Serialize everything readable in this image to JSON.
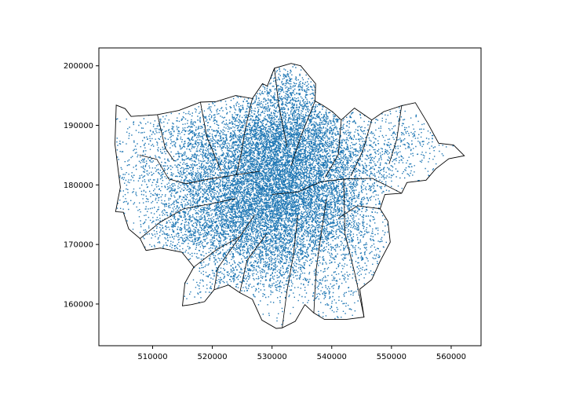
{
  "chart_data": {
    "type": "scatter",
    "title": "",
    "xlabel": "",
    "ylabel": "",
    "xlim": [
      501000,
      565000
    ],
    "ylim": [
      153000,
      203000
    ],
    "grid": false,
    "legend": "none",
    "point_color": "#1f77b4",
    "boundary_color": "#000000",
    "x_ticks": [
      {
        "value": 510000,
        "label": "510000"
      },
      {
        "value": 520000,
        "label": "520000"
      },
      {
        "value": 530000,
        "label": "530000"
      },
      {
        "value": 540000,
        "label": "540000"
      },
      {
        "value": 550000,
        "label": "550000"
      },
      {
        "value": 560000,
        "label": "560000"
      }
    ],
    "y_ticks": [
      {
        "value": 160000,
        "label": "160000"
      },
      {
        "value": 170000,
        "label": "170000"
      },
      {
        "value": 180000,
        "label": "180000"
      },
      {
        "value": 190000,
        "label": "190000"
      },
      {
        "value": 200000,
        "label": "200000"
      }
    ],
    "outline": [
      [
        503800,
        175500
      ],
      [
        504600,
        179600
      ],
      [
        503700,
        186800
      ],
      [
        503900,
        193400
      ],
      [
        505400,
        192800
      ],
      [
        506400,
        191500
      ],
      [
        510800,
        191800
      ],
      [
        514400,
        192500
      ],
      [
        518000,
        193900
      ],
      [
        520700,
        194000
      ],
      [
        523900,
        195000
      ],
      [
        526700,
        194500
      ],
      [
        528400,
        197000
      ],
      [
        529200,
        196600
      ],
      [
        530400,
        199600
      ],
      [
        533200,
        200400
      ],
      [
        534800,
        200000
      ],
      [
        536200,
        198300
      ],
      [
        537300,
        197000
      ],
      [
        537200,
        194100
      ],
      [
        538600,
        193300
      ],
      [
        540100,
        192300
      ],
      [
        541600,
        190900
      ],
      [
        543800,
        192900
      ],
      [
        546700,
        190900
      ],
      [
        548700,
        192300
      ],
      [
        551700,
        193300
      ],
      [
        554000,
        193800
      ],
      [
        556100,
        190300
      ],
      [
        557900,
        187000
      ],
      [
        560400,
        186700
      ],
      [
        562200,
        184900
      ],
      [
        559600,
        184400
      ],
      [
        557400,
        182700
      ],
      [
        555800,
        180800
      ],
      [
        552600,
        180400
      ],
      [
        551700,
        178600
      ],
      [
        548900,
        178400
      ],
      [
        548100,
        176000
      ],
      [
        549400,
        173900
      ],
      [
        549800,
        170400
      ],
      [
        548100,
        167200
      ],
      [
        546700,
        164100
      ],
      [
        544700,
        162500
      ],
      [
        545400,
        157800
      ],
      [
        542400,
        157400
      ],
      [
        538800,
        157400
      ],
      [
        537000,
        158500
      ],
      [
        535500,
        159900
      ],
      [
        533900,
        157100
      ],
      [
        531700,
        156000
      ],
      [
        530700,
        155900
      ],
      [
        528300,
        157300
      ],
      [
        526700,
        160800
      ],
      [
        524600,
        161900
      ],
      [
        522700,
        163200
      ],
      [
        520300,
        162400
      ],
      [
        518700,
        160400
      ],
      [
        516500,
        159900
      ],
      [
        515000,
        159700
      ],
      [
        515400,
        163500
      ],
      [
        516900,
        166200
      ],
      [
        514900,
        168700
      ],
      [
        511300,
        169400
      ],
      [
        508900,
        169000
      ],
      [
        507900,
        171000
      ],
      [
        506000,
        172600
      ],
      [
        505100,
        175400
      ]
    ],
    "inner_boundaries": [
      [
        [
          507800,
          185000
        ],
        [
          510700,
          184300
        ],
        [
          512700,
          181000
        ],
        [
          515600,
          180200
        ],
        [
          519500,
          181000
        ],
        [
          524000,
          181700
        ],
        [
          528000,
          182300
        ]
      ],
      [
        [
          510800,
          191800
        ],
        [
          512100,
          186200
        ],
        [
          513600,
          184000
        ]
      ],
      [
        [
          518000,
          193900
        ],
        [
          519100,
          188000
        ],
        [
          521500,
          182300
        ]
      ],
      [
        [
          526700,
          194500
        ],
        [
          525500,
          189300
        ],
        [
          524800,
          185100
        ],
        [
          524000,
          181700
        ]
      ],
      [
        [
          530400,
          199600
        ],
        [
          531100,
          193600
        ],
        [
          532500,
          186400
        ]
      ],
      [
        [
          537200,
          194100
        ],
        [
          534800,
          188100
        ],
        [
          533200,
          183200
        ]
      ],
      [
        [
          541600,
          190900
        ],
        [
          541100,
          185100
        ],
        [
          538900,
          181300
        ]
      ],
      [
        [
          546700,
          190900
        ],
        [
          545200,
          185700
        ],
        [
          543200,
          181500
        ]
      ],
      [
        [
          551700,
          193300
        ],
        [
          550900,
          187700
        ],
        [
          549600,
          183500
        ]
      ],
      [
        [
          530000,
          178400
        ],
        [
          534300,
          178800
        ],
        [
          538100,
          180500
        ],
        [
          542000,
          181000
        ],
        [
          546800,
          181100
        ],
        [
          551700,
          178600
        ]
      ],
      [
        [
          507900,
          171000
        ],
        [
          511200,
          173700
        ],
        [
          515200,
          176000
        ],
        [
          519600,
          176800
        ],
        [
          523900,
          177700
        ]
      ],
      [
        [
          516900,
          166200
        ],
        [
          520800,
          169200
        ],
        [
          524600,
          171300
        ],
        [
          527100,
          175000
        ]
      ],
      [
        [
          524600,
          161900
        ],
        [
          525800,
          167300
        ],
        [
          529100,
          171800
        ]
      ],
      [
        [
          531700,
          156000
        ],
        [
          532500,
          162200
        ],
        [
          533600,
          168400
        ],
        [
          534300,
          174900
        ]
      ],
      [
        [
          537000,
          158500
        ],
        [
          537400,
          165900
        ],
        [
          538300,
          172300
        ],
        [
          539100,
          177600
        ]
      ],
      [
        [
          545400,
          157800
        ],
        [
          543900,
          165000
        ],
        [
          542200,
          171800
        ],
        [
          542000,
          181000
        ]
      ],
      [
        [
          548100,
          176000
        ],
        [
          544300,
          176500
        ],
        [
          541100,
          174400
        ]
      ],
      [
        [
          520300,
          162400
        ],
        [
          520900,
          166000
        ],
        [
          524600,
          171300
        ]
      ]
    ],
    "clusters": [
      {
        "cx": 530600,
        "cy": 181200,
        "sx": 6400,
        "sy": 5400,
        "n": 5200
      },
      {
        "cx": 524500,
        "cy": 174800,
        "sx": 4700,
        "sy": 3900,
        "n": 1500
      },
      {
        "cx": 536500,
        "cy": 174500,
        "sx": 5000,
        "sy": 4100,
        "n": 1500
      },
      {
        "cx": 529200,
        "cy": 188900,
        "sx": 4300,
        "sy": 3500,
        "n": 1100
      },
      {
        "cx": 536800,
        "cy": 188600,
        "sx": 3800,
        "sy": 3500,
        "n": 850
      },
      {
        "cx": 530800,
        "cy": 167800,
        "sx": 3700,
        "sy": 3300,
        "n": 650
      },
      {
        "cx": 517500,
        "cy": 180600,
        "sx": 3800,
        "sy": 3300,
        "n": 650
      },
      {
        "cx": 542800,
        "cy": 182200,
        "sx": 3200,
        "sy": 4000,
        "n": 500
      },
      {
        "cx": 515400,
        "cy": 172600,
        "sx": 3700,
        "sy": 2600,
        "n": 450
      },
      {
        "cx": 532400,
        "cy": 195800,
        "sx": 2600,
        "sy": 2100,
        "n": 320
      },
      {
        "cx": 547600,
        "cy": 185200,
        "sx": 3400,
        "sy": 3000,
        "n": 260
      },
      {
        "cx": 508500,
        "cy": 181000,
        "sx": 2700,
        "sy": 4600,
        "n": 220
      },
      {
        "cx": 513500,
        "cy": 188000,
        "sx": 3300,
        "sy": 2400,
        "n": 200
      },
      {
        "cx": 522300,
        "cy": 165400,
        "sx": 3300,
        "sy": 2400,
        "n": 260
      },
      {
        "cx": 544600,
        "cy": 168200,
        "sx": 2700,
        "sy": 3600,
        "n": 190
      },
      {
        "cx": 553400,
        "cy": 187200,
        "sx": 2700,
        "sy": 2700,
        "n": 150
      },
      {
        "cx": 539800,
        "cy": 162400,
        "sx": 2200,
        "sy": 2000,
        "n": 120
      },
      {
        "cx": 519500,
        "cy": 187400,
        "sx": 2500,
        "sy": 2800,
        "n": 280
      }
    ],
    "uniform_fill_count": 900
  }
}
